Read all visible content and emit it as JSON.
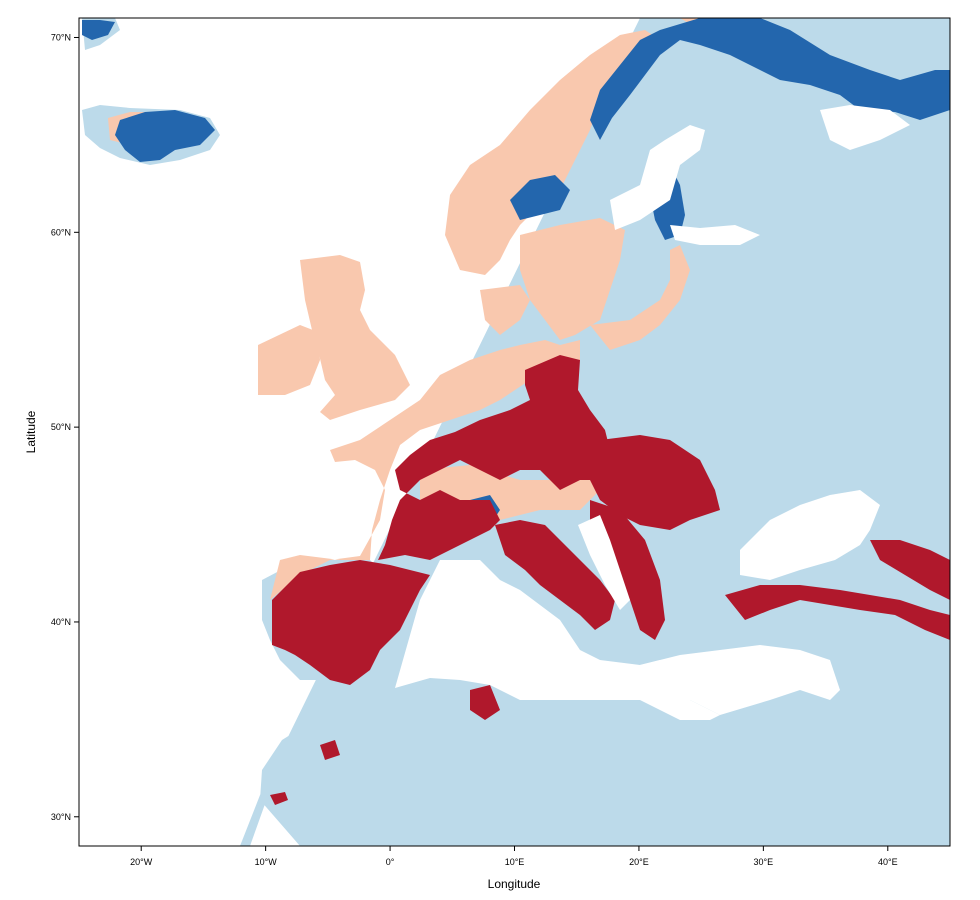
{
  "chart_data": {
    "type": "map",
    "xlabel": "Longitude",
    "ylabel": "Latitude",
    "xlim": [
      -25,
      45
    ],
    "ylim": [
      28.5,
      71
    ],
    "x_ticks": [
      {
        "value": -20,
        "label": "20°W"
      },
      {
        "value": -10,
        "label": "10°W"
      },
      {
        "value": 0,
        "label": "0°"
      },
      {
        "value": 10,
        "label": "10°E"
      },
      {
        "value": 20,
        "label": "20°E"
      },
      {
        "value": 30,
        "label": "30°E"
      },
      {
        "value": 40,
        "label": "40°E"
      }
    ],
    "y_ticks": [
      {
        "value": 30,
        "label": "30°N"
      },
      {
        "value": 40,
        "label": "40°N"
      },
      {
        "value": 50,
        "label": "50°N"
      },
      {
        "value": 60,
        "label": "60°N"
      },
      {
        "value": 70,
        "label": "70°N"
      }
    ],
    "colors": {
      "background": "#ffffff",
      "light_blue": "#bcdaea",
      "dark_blue": "#2366ad",
      "peach": "#f9c8ae",
      "dark_red": "#b0182c"
    }
  }
}
